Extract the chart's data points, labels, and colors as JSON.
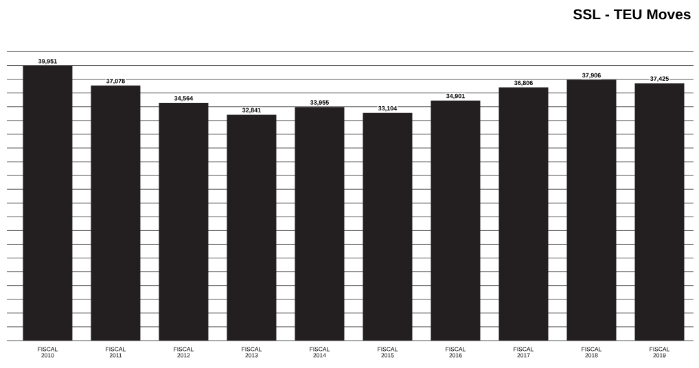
{
  "chart_data": {
    "type": "bar",
    "title": "SSL - TEU Moves",
    "categories": [
      "FISCAL 2010",
      "FISCAL 2011",
      "FISCAL 2012",
      "FISCAL 2013",
      "FISCAL 2014",
      "FISCAL 2015",
      "FISCAL 2016",
      "FISCAL 2017",
      "FISCAL 2018",
      "FISCAL 2019"
    ],
    "values": [
      39951,
      37078,
      34564,
      32841,
      33955,
      33104,
      34901,
      36806,
      37906,
      37425
    ],
    "value_labels": [
      "39,951",
      "37,078",
      "34,564",
      "32,841",
      "33,955",
      "33,104",
      "34,901",
      "36,806",
      "37,906",
      "37,425"
    ],
    "color": "#231f20",
    "grid": "y",
    "tick_labels": "x"
  }
}
